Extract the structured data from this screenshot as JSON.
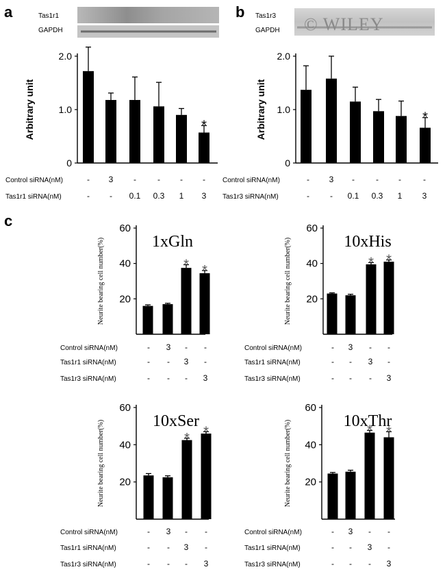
{
  "figure": {
    "panel_a_label": "a",
    "panel_b_label": "b",
    "panel_c_label": "c",
    "watermark": "© WILEY"
  },
  "blots": {
    "a": {
      "band1": "Tas1r1",
      "band2": "GAPDH"
    },
    "b": {
      "band1": "Tas1r3",
      "band2": "GAPDH"
    }
  },
  "chart_data": [
    {
      "id": "a",
      "type": "bar",
      "title": "",
      "ylabel": "Arbitrary unit",
      "ylim": [
        0,
        2.0
      ],
      "yticks": [
        "0",
        "1.0",
        "2.0"
      ],
      "values": [
        1.72,
        1.18,
        1.18,
        1.06,
        0.9,
        0.57
      ],
      "errors": [
        0.45,
        0.13,
        0.43,
        0.45,
        0.12,
        0.13
      ],
      "significant": [
        false,
        false,
        false,
        false,
        false,
        true
      ],
      "significance_mark": "*",
      "conditions": [
        {
          "label": "Control siRNA(nM)",
          "values": [
            "-",
            "3",
            "-",
            "-",
            "-",
            "-"
          ]
        },
        {
          "label": "Tas1r1 siRNA(nM)",
          "values": [
            "-",
            "-",
            "0.1",
            "0.3",
            "1",
            "3"
          ]
        }
      ]
    },
    {
      "id": "b",
      "type": "bar",
      "title": "",
      "ylabel": "Arbitrary unit",
      "ylim": [
        0,
        2.0
      ],
      "yticks": [
        "0",
        "1.0",
        "2.0"
      ],
      "values": [
        1.37,
        1.58,
        1.15,
        0.97,
        0.88,
        0.66
      ],
      "errors": [
        0.45,
        0.42,
        0.27,
        0.22,
        0.28,
        0.19
      ],
      "significant": [
        false,
        false,
        false,
        false,
        false,
        true
      ],
      "significance_mark": "*",
      "conditions": [
        {
          "label": "Control siRNA(nM)",
          "values": [
            "-",
            "3",
            "-",
            "-",
            "-",
            "-"
          ]
        },
        {
          "label": "Tas1r3 siRNA(nM)",
          "values": [
            "-",
            "-",
            "0.1",
            "0.3",
            "1",
            "3"
          ]
        }
      ]
    },
    {
      "id": "c1",
      "type": "bar",
      "title": "1xGln",
      "ylabel": "Neurite bearing cell number(%)",
      "ylim": [
        0,
        60
      ],
      "yticks": [
        "20",
        "40",
        "60"
      ],
      "values": [
        16,
        17,
        37.5,
        34.5
      ],
      "errors": [
        0.6,
        0.5,
        1.8,
        1.5
      ],
      "significant": [
        false,
        false,
        true,
        true
      ],
      "significance_mark": "*",
      "conditions": [
        {
          "label": "Control siRNA(nM)",
          "values": [
            "-",
            "3",
            "-",
            "-"
          ]
        },
        {
          "label": "Tas1r1 siRNA(nM)",
          "values": [
            "-",
            "-",
            "3",
            "-"
          ]
        },
        {
          "label": "Tas1r3 siRNA(nM)",
          "values": [
            "-",
            "-",
            "-",
            "3"
          ]
        }
      ]
    },
    {
      "id": "c2",
      "type": "bar",
      "title": "10xHis",
      "ylabel": "Neurite bearing cell number(%)",
      "ylim": [
        0,
        60
      ],
      "yticks": [
        "20",
        "40",
        "60"
      ],
      "values": [
        23,
        22,
        39.5,
        41
      ],
      "errors": [
        0.4,
        0.6,
        1.0,
        1.0
      ],
      "significant": [
        false,
        false,
        true,
        true
      ],
      "significance_mark": "*",
      "conditions": [
        {
          "label": "Control siRNA(nM)",
          "values": [
            "-",
            "3",
            "-",
            "-"
          ]
        },
        {
          "label": "Tas1r1 siRNA(nM)",
          "values": [
            "-",
            "-",
            "3",
            "-"
          ]
        },
        {
          "label": "Tas1r3 siRNA(nM)",
          "values": [
            "-",
            "-",
            "-",
            "3"
          ]
        }
      ]
    },
    {
      "id": "c3",
      "type": "bar",
      "title": "10xSer",
      "ylabel": "Neurite bearing cell number(%)",
      "ylim": [
        0,
        60
      ],
      "yticks": [
        "20",
        "40",
        "60"
      ],
      "values": [
        23.5,
        22.5,
        42.5,
        46
      ],
      "errors": [
        1.0,
        0.8,
        1.0,
        1.0
      ],
      "significant": [
        false,
        false,
        true,
        true
      ],
      "significance_mark": "*",
      "conditions": [
        {
          "label": "Control siRNA(nM)",
          "values": [
            "-",
            "3",
            "-",
            "-"
          ]
        },
        {
          "label": "Tas1r1 siRNA(nM)",
          "values": [
            "-",
            "-",
            "3",
            "-"
          ]
        },
        {
          "label": "Tas1r3 siRNA(nM)",
          "values": [
            "-",
            "-",
            "-",
            "3"
          ]
        }
      ]
    },
    {
      "id": "c4",
      "type": "bar",
      "title": "10xThr",
      "ylabel": "Neurite bearing cell number(%)",
      "ylim": [
        0,
        60
      ],
      "yticks": [
        "20",
        "40",
        "60"
      ],
      "values": [
        24.5,
        25.5,
        46.5,
        44
      ],
      "errors": [
        0.6,
        0.8,
        1.2,
        3.0
      ],
      "significant": [
        false,
        false,
        true,
        true
      ],
      "significance_mark": "*",
      "conditions": [
        {
          "label": "Control siRNA(nM)",
          "values": [
            "-",
            "3",
            "-",
            "-"
          ]
        },
        {
          "label": "Tas1r1 siRNA(nM)",
          "values": [
            "-",
            "-",
            "3",
            "-"
          ]
        },
        {
          "label": "Tas1r3 siRNA(nM)",
          "values": [
            "-",
            "-",
            "-",
            "3"
          ]
        }
      ]
    }
  ]
}
